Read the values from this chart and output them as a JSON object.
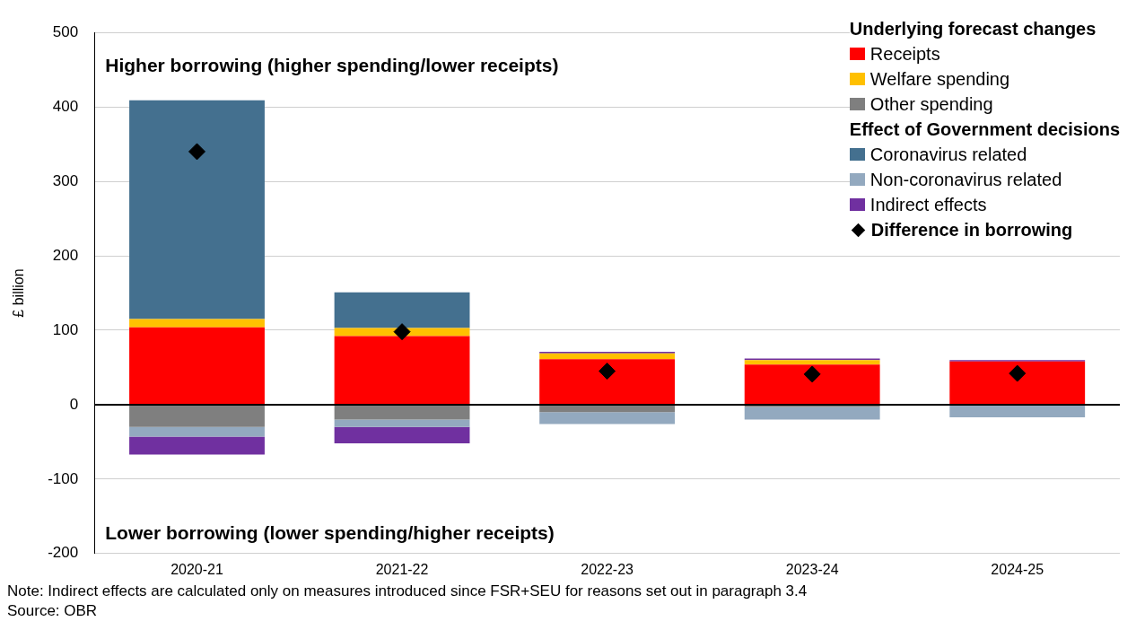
{
  "chart_data": {
    "type": "bar",
    "stacked": true,
    "ylabel": "£ billion",
    "categories": [
      "2020-21",
      "2021-22",
      "2022-23",
      "2023-24",
      "2024-25"
    ],
    "legend_title": [
      "Underlying forecast changes",
      "Effect of Government decisions"
    ],
    "series": [
      {
        "name": "Receipts",
        "color": "#ff0000",
        "values": [
          104,
          92,
          61,
          54,
          58
        ]
      },
      {
        "name": "Welfare spending",
        "color": "#ffc000",
        "values": [
          11,
          11,
          8,
          6,
          null
        ]
      },
      {
        "name": "Other spending",
        "color": "#7f7f7f",
        "values": [
          -30,
          -20,
          -10,
          -3,
          null
        ]
      },
      {
        "name": "Coronavirus related",
        "color": "#44708f",
        "values": [
          294,
          48,
          null,
          null,
          null
        ]
      },
      {
        "name": "Non-coronavirus related",
        "color": "#93a9bf",
        "values": [
          -13,
          -10,
          -16,
          -17,
          -17
        ]
      },
      {
        "name": "Indirect effects",
        "color": "#7030a0",
        "values": [
          -24,
          -22,
          2,
          2,
          2
        ]
      },
      {
        "name": "Difference in borrowing",
        "type": "scatter",
        "marker": "diamond",
        "color": "#000000",
        "x": [
          "2020-21",
          "2021-22",
          "2022-23",
          "2023-24",
          "2024-25"
        ],
        "values": [
          340,
          98,
          45,
          41,
          42
        ]
      }
    ],
    "ylim": [
      -200,
      500
    ],
    "yticks": [
      -200,
      -100,
      0,
      100,
      200,
      300,
      400,
      500
    ],
    "grid": "y",
    "legend": "top right",
    "annotations": [
      "Higher borrowing (higher spending/lower receipts)",
      "Lower borrowing (lower spending/higher receipts)",
      "Note: Indirect effects are calculated only on measures introduced since FSR+SEU for reasons set out in paragraph 3.4",
      "Source: OBR"
    ]
  }
}
